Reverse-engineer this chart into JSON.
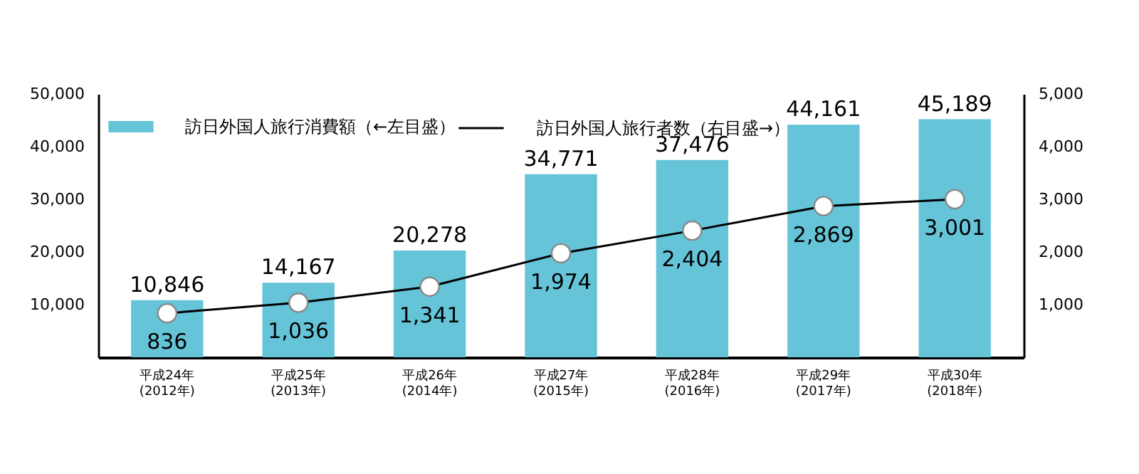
{
  "chart_data": {
    "type": "bar",
    "categories": [
      "平成24年\n(2012年)",
      "平成25年\n(2013年)",
      "平成26年\n(2014年)",
      "平成27年\n(2015年)",
      "平成28年\n(2016年)",
      "平成29年\n(2017年)",
      "平成30年\n(2018年)"
    ],
    "series": [
      {
        "name": "訪日外国人旅行消費額（←左目盛）",
        "color": "#66c4d9",
        "values": [
          10846,
          14167,
          20278,
          34771,
          37476,
          44161,
          45189
        ],
        "value_labels": [
          "10,846",
          "14,167",
          "20,278",
          "34,771",
          "37,476",
          "44,161",
          "45,189"
        ]
      },
      {
        "name": "訪日外国人旅行者数（右目盛→）",
        "type": "line",
        "axis": "y2",
        "color": "#000000",
        "marker": "circle",
        "values": [
          836,
          1036,
          1341,
          1974,
          2404,
          2869,
          3001
        ],
        "value_labels": [
          "836",
          "1,036",
          "1,341",
          "1,974",
          "2,404",
          "2,869",
          "3,001"
        ]
      }
    ],
    "ylim": [
      0,
      50000
    ],
    "yticks": [
      {
        "value": 10000,
        "label": "10,000"
      },
      {
        "value": 20000,
        "label": "20,000"
      },
      {
        "value": 30000,
        "label": "30,000"
      },
      {
        "value": 40000,
        "label": "40,000"
      },
      {
        "value": 50000,
        "label": "50,000"
      }
    ],
    "y2lim": [
      0,
      5000
    ],
    "y2ticks": [
      {
        "value": 1000,
        "label": "1,000"
      },
      {
        "value": 2000,
        "label": "2,000"
      },
      {
        "value": 3000,
        "label": "3,000"
      },
      {
        "value": 4000,
        "label": "4,000"
      },
      {
        "value": 5000,
        "label": "5,000"
      }
    ],
    "legend": "top left",
    "grid": false
  }
}
